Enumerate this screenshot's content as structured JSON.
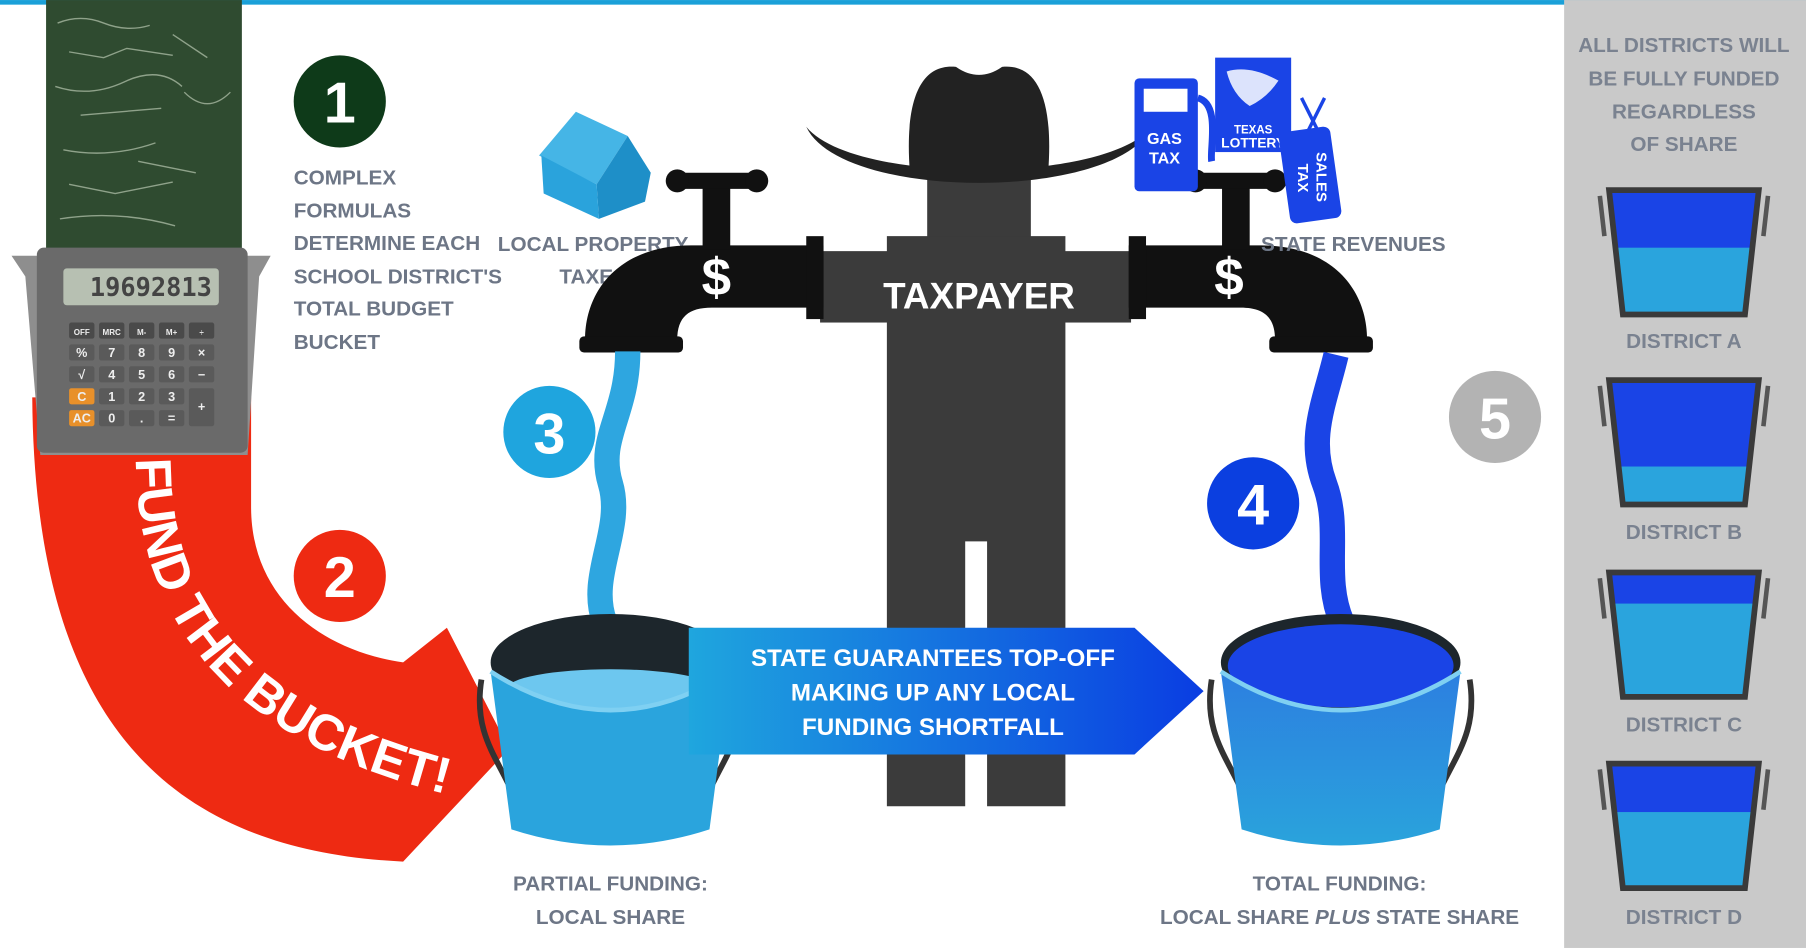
{
  "calculator": {
    "display": "19692813",
    "keys": [
      [
        "OFF",
        "MRC",
        "M-",
        "M+",
        "÷"
      ],
      [
        "%",
        "7",
        "8",
        "9",
        "×"
      ],
      [
        "√",
        "4",
        "5",
        "6",
        "−"
      ],
      [
        "C",
        "1",
        "2",
        "3",
        "+"
      ],
      [
        "AC",
        "0",
        ".",
        "="
      ]
    ]
  },
  "badges": [
    1,
    2,
    3,
    4,
    5
  ],
  "step1_text": [
    "COMPLEX",
    "FORMULAS",
    "DETERMINE EACH",
    "SCHOOL DISTRICT'S",
    "TOTAL BUDGET",
    "BUCKET"
  ],
  "fund_text": "FUND THE BUCKET!",
  "local_taxes": [
    "LOCAL PROPERTY",
    "TAXES"
  ],
  "dollar_signs": [
    "$",
    "$"
  ],
  "taxpayer": "TAXPAYER",
  "state_icons": {
    "gas": [
      "GAS",
      "TAX"
    ],
    "lottery": [
      "TEXAS",
      "LOTTERY"
    ],
    "sales": [
      "SALES",
      "TAX"
    ]
  },
  "state_revenues": "STATE REVENUES",
  "guarantee": [
    "STATE GUARANTEES TOP-OFF",
    "MAKING UP ANY LOCAL",
    "FUNDING SHORTFALL"
  ],
  "partial": [
    "PARTIAL FUNDING:",
    "LOCAL SHARE"
  ],
  "total": {
    "line1": "TOTAL FUNDING:",
    "line2": [
      "LOCAL SHARE ",
      "PLUS",
      " STATE SHARE"
    ]
  },
  "sidebar": {
    "heading": [
      "ALL DISTRICTS WILL",
      "BE FULLY FUNDED",
      "REGARDLESS",
      "OF SHARE"
    ],
    "districts": [
      "DISTRICT A",
      "DISTRICT B",
      "DISTRICT C",
      "DISTRICT D"
    ]
  }
}
